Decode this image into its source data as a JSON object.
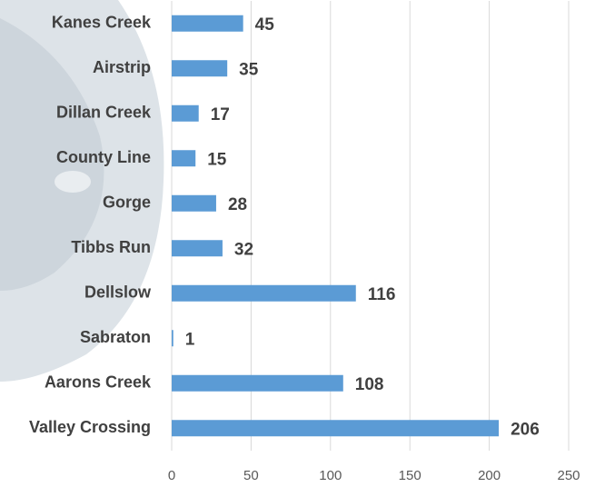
{
  "chart_data": {
    "type": "bar",
    "orientation": "horizontal",
    "categories": [
      "Kanes Creek",
      "Airstrip",
      "Dillan Creek",
      "County Line",
      "Gorge",
      "Tibbs Run",
      "Dellslow",
      "Sabraton",
      "Aarons Creek",
      "Valley Crossing"
    ],
    "values": [
      45,
      35,
      17,
      15,
      28,
      32,
      116,
      1,
      108,
      206
    ],
    "color": "#5b9bd5",
    "xlim": [
      0,
      250
    ],
    "xticks": [
      0,
      50,
      100,
      150,
      200,
      250
    ],
    "grid": true
  }
}
